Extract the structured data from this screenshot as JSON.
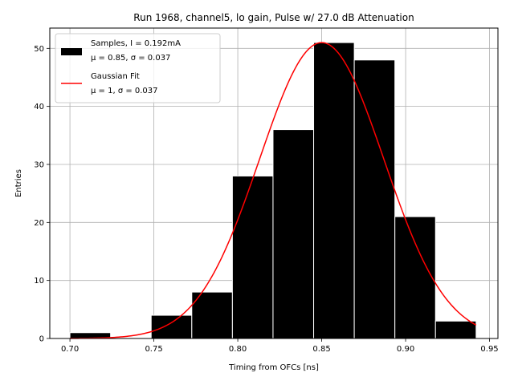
{
  "chart_data": {
    "type": "bar",
    "title": "Run 1968, channel5, lo gain, Pulse w/ 27.0 dB Attenuation",
    "xlabel": "Timing from OFCs [ns]",
    "ylabel": "Entries",
    "xlim": [
      0.688,
      0.955
    ],
    "ylim": [
      0,
      53.5
    ],
    "xticks": [
      0.7,
      0.75,
      0.8,
      0.85,
      0.9,
      0.95
    ],
    "xtick_labels": [
      "0.70",
      "0.75",
      "0.80",
      "0.85",
      "0.90",
      "0.95"
    ],
    "yticks": [
      0,
      10,
      20,
      30,
      40,
      50
    ],
    "ytick_labels": [
      "0",
      "10",
      "20",
      "30",
      "40",
      "50"
    ],
    "grid": true,
    "legend_position": "top-left",
    "histogram": {
      "bin_edges": [
        0.7,
        0.7242,
        0.7484,
        0.7726,
        0.7968,
        0.821,
        0.8452,
        0.8694,
        0.8936,
        0.9178,
        0.942
      ],
      "counts": [
        1,
        0,
        4,
        8,
        28,
        36,
        51,
        48,
        21,
        3
      ],
      "color": "#000000",
      "edgecolor": "#ffffff"
    },
    "fit_curve": {
      "type": "gaussian",
      "amplitude": 51,
      "mean": 0.85,
      "sigma": 0.037,
      "x_range": [
        0.7,
        0.942
      ],
      "color": "#ff0000"
    },
    "legend": [
      {
        "line1": "Samples, I = 0.192mA",
        "line2": "μ = 0.85, σ = 0.037",
        "swatch": "patch",
        "color": "#000000"
      },
      {
        "line1": "Gaussian Fit",
        "line2": "μ = 1, σ = 0.037",
        "swatch": "line",
        "color": "#ff0000"
      }
    ]
  }
}
